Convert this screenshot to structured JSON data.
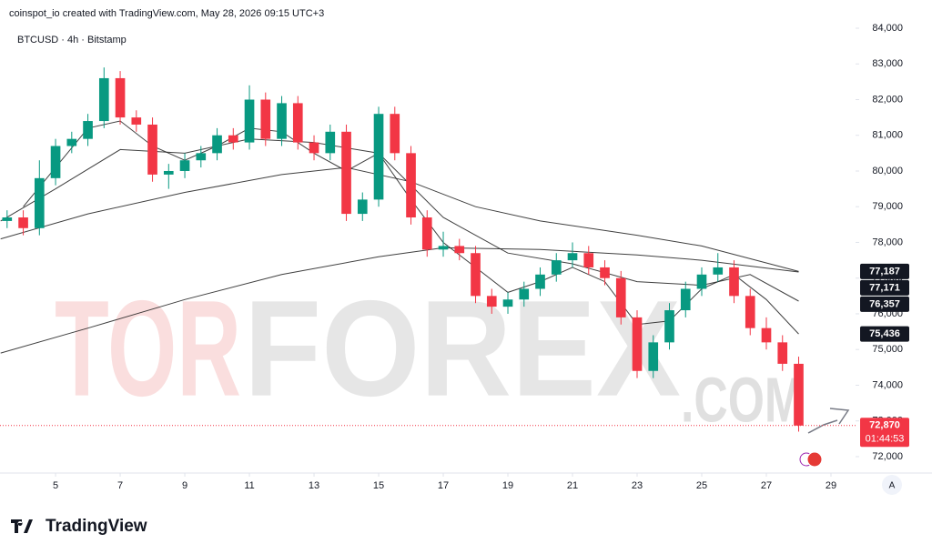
{
  "header": {
    "attribution": "coinspot_io created with TradingView.com, May 28, 2026 09:15 UTC+3",
    "symbol": "BTCUSD · 4h · Bitstamp"
  },
  "watermark": {
    "part1": "TOR",
    "part2": "FOREX",
    "part3": ".COM"
  },
  "footer": {
    "brand": "TradingView"
  },
  "auto_button": "A",
  "chart_data": {
    "type": "candlestick",
    "up_color": "#089981",
    "down_color": "#f23645",
    "x": [
      3.5,
      4,
      4.5,
      5,
      5.5,
      6,
      6.5,
      7,
      7.5,
      8,
      8.5,
      9,
      9.5,
      10,
      10.5,
      11,
      11.5,
      12,
      12.5,
      13,
      13.5,
      14,
      14.5,
      15,
      15.5,
      16,
      16.5,
      17,
      17.5,
      18,
      18.5,
      19,
      19.5,
      20,
      20.5,
      21,
      21.5,
      22,
      22.5,
      23,
      23.5,
      24,
      24.5,
      25,
      25.5,
      26,
      26.5,
      27,
      27.5,
      28
    ],
    "open": [
      78600,
      78700,
      78400,
      79800,
      80700,
      80900,
      81400,
      82600,
      81500,
      81300,
      79900,
      80000,
      80300,
      80500,
      81000,
      80800,
      82000,
      80900,
      81900,
      80800,
      80500,
      81100,
      78800,
      79200,
      81600,
      80500,
      78700,
      77800,
      77900,
      77700,
      76500,
      76200,
      76400,
      76700,
      77100,
      77500,
      77700,
      77300,
      77000,
      75900,
      74400,
      75200,
      76100,
      76700,
      77100,
      77300,
      76500,
      75600,
      75200,
      74600
    ],
    "high": [
      78900,
      78900,
      80300,
      80900,
      81100,
      81600,
      82900,
      82800,
      81700,
      81500,
      80200,
      80500,
      80700,
      81200,
      81200,
      82400,
      82200,
      82100,
      82100,
      81000,
      81300,
      81300,
      79400,
      81800,
      81800,
      80700,
      78900,
      78300,
      78100,
      77900,
      76700,
      76600,
      76900,
      77300,
      77700,
      78000,
      77900,
      77500,
      77200,
      76100,
      75400,
      76300,
      76900,
      77300,
      77700,
      77500,
      76700,
      75900,
      75400,
      74800
    ],
    "low": [
      78400,
      78200,
      78200,
      79600,
      80500,
      80700,
      81200,
      81300,
      81100,
      79700,
      79500,
      79800,
      80100,
      80300,
      80600,
      80600,
      80700,
      80700,
      80600,
      80300,
      80300,
      78600,
      78600,
      79000,
      80300,
      78500,
      77600,
      77600,
      77500,
      76300,
      76000,
      76000,
      76200,
      76500,
      76900,
      77300,
      77100,
      76800,
      75700,
      74200,
      74200,
      75000,
      75900,
      76500,
      76900,
      76300,
      75400,
      75000,
      74400,
      72700
    ],
    "close": [
      78700,
      78400,
      79800,
      80700,
      80900,
      81400,
      82600,
      81500,
      81300,
      79900,
      80000,
      80300,
      80500,
      81000,
      80800,
      82000,
      80900,
      81900,
      80800,
      80500,
      81100,
      78800,
      79200,
      81600,
      80500,
      78700,
      77800,
      77900,
      77700,
      76500,
      76200,
      76400,
      76700,
      77100,
      77500,
      77700,
      77300,
      77000,
      75900,
      74400,
      75200,
      76100,
      76700,
      77100,
      77300,
      76500,
      75600,
      75200,
      74600,
      72870
    ],
    "lines": [
      {
        "color": "#1e1e1e",
        "x": [
          4,
          6,
          7,
          8,
          9,
          10,
          11,
          12,
          13,
          14,
          15,
          16,
          17,
          18,
          19,
          20,
          21,
          22,
          23,
          24,
          25,
          26,
          27,
          28
        ],
        "values": [
          79000,
          81200,
          81400,
          80700,
          80300,
          80700,
          81200,
          81100,
          80500,
          80000,
          80500,
          79200,
          78000,
          77300,
          76600,
          76900,
          77300,
          76900,
          75700,
          75800,
          76700,
          77100,
          76400,
          75436
        ]
      },
      {
        "color": "#1e1e1e",
        "x": [
          3.3,
          5,
          7,
          9,
          11,
          13,
          15,
          17,
          19,
          21,
          23,
          25,
          26.5,
          28
        ],
        "values": [
          78600,
          79500,
          80600,
          80500,
          80900,
          80800,
          80500,
          78700,
          77700,
          77400,
          76900,
          76800,
          77100,
          76357
        ]
      },
      {
        "color": "#1e1e1e",
        "x": [
          3.3,
          6,
          9,
          12,
          14,
          16,
          18,
          20,
          23,
          25,
          28
        ],
        "values": [
          78100,
          78800,
          79400,
          79900,
          80100,
          79700,
          79000,
          78600,
          78200,
          77900,
          77187
        ]
      },
      {
        "color": "#1e1e1e",
        "x": [
          3.3,
          6,
          9,
          12,
          15,
          17,
          20,
          23,
          25,
          28
        ],
        "values": [
          74900,
          75600,
          76400,
          77100,
          77600,
          77850,
          77800,
          77650,
          77500,
          77171
        ]
      }
    ],
    "price_labels": [
      {
        "value": 77187,
        "label": "77,187",
        "color": "#131722"
      },
      {
        "value": 77171,
        "label": "77,171",
        "color": "#131722"
      },
      {
        "value": 76357,
        "label": "76,357",
        "color": "#131722"
      },
      {
        "value": 75436,
        "label": "75,436",
        "color": "#131722"
      },
      {
        "value": 72870,
        "label": "72,870",
        "color": "#f23645",
        "countdown": "01:44:53"
      }
    ],
    "xlim": [
      3.28,
      29.62
    ],
    "xticks": [
      5,
      7,
      9,
      11,
      13,
      15,
      17,
      19,
      21,
      23,
      25,
      27,
      29
    ],
    "ylim": [
      71540,
      84790
    ],
    "yticks": [
      {
        "value": 72000,
        "label": "72,000"
      },
      {
        "value": 73000,
        "label": "73,000"
      },
      {
        "value": 74000,
        "label": "74,000"
      },
      {
        "value": 75000,
        "label": "75,000"
      },
      {
        "value": 76000,
        "label": "76,000"
      },
      {
        "value": 77000,
        "label": "77,000"
      },
      {
        "value": 78000,
        "label": "78,000"
      },
      {
        "value": 79000,
        "label": "79,000"
      },
      {
        "value": 80000,
        "label": "80,000"
      },
      {
        "value": 81000,
        "label": "81,000"
      },
      {
        "value": 82000,
        "label": "82,000"
      },
      {
        "value": 83000,
        "label": "83,000"
      },
      {
        "value": 84000,
        "label": "84,000"
      }
    ]
  }
}
